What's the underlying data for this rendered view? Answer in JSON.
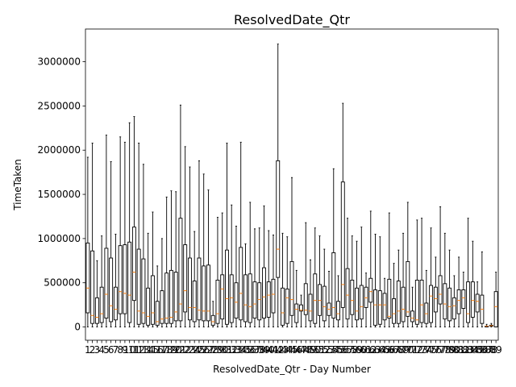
{
  "chart_data": {
    "type": "box",
    "title": "ResolvedDate_Qtr",
    "xlabel": "ResolvedDate_Qtr - Day Number",
    "ylabel": "TimeTaken",
    "ylim": [
      -150000,
      3370000
    ],
    "xlim": [
      0.5,
      89.5
    ],
    "yticks": [
      0,
      500000,
      1000000,
      1500000,
      2000000,
      2500000,
      3000000
    ],
    "ytick_labels": [
      "0",
      "500000",
      "1000000",
      "1500000",
      "2000000",
      "2500000",
      "3000000"
    ],
    "grid": false,
    "legend": "none",
    "colors": {
      "box": "#000000",
      "median": "#ff7f0e"
    },
    "categories": [
      "1",
      "2",
      "3",
      "4",
      "5",
      "6",
      "7",
      "8",
      "9",
      "10",
      "11",
      "12",
      "13",
      "14",
      "15",
      "16",
      "17",
      "18",
      "19",
      "20",
      "21",
      "22",
      "23",
      "24",
      "25",
      "26",
      "27",
      "28",
      "29",
      "30",
      "31",
      "32",
      "33",
      "34",
      "35",
      "36",
      "37",
      "38",
      "39",
      "40",
      "41",
      "42",
      "43",
      "44",
      "45",
      "46",
      "47",
      "48",
      "49",
      "50",
      "51",
      "52",
      "53",
      "54",
      "55",
      "56",
      "57",
      "58",
      "59",
      "60",
      "61",
      "62",
      "63",
      "64",
      "65",
      "66",
      "67",
      "68",
      "69",
      "70",
      "71",
      "72",
      "73",
      "74",
      "75",
      "76",
      "77",
      "78",
      "79",
      "80",
      "81",
      "82",
      "83",
      "84",
      "85",
      "86",
      "87",
      "88",
      "89"
    ],
    "boxes": [
      {
        "whislo": 0,
        "q1": 160000,
        "med": 440000,
        "q3": 950000,
        "whishi": 1920000
      },
      {
        "whislo": 0,
        "q1": 40000,
        "med": 130000,
        "q3": 860000,
        "whishi": 2080000
      },
      {
        "whislo": 0,
        "q1": 40000,
        "med": 110000,
        "q3": 330000,
        "whishi": 750000
      },
      {
        "whislo": 0,
        "q1": 50000,
        "med": 150000,
        "q3": 450000,
        "whishi": 1030000
      },
      {
        "whislo": 0,
        "q1": 100000,
        "med": 370000,
        "q3": 890000,
        "whishi": 2170000
      },
      {
        "whislo": 0,
        "q1": 60000,
        "med": 240000,
        "q3": 780000,
        "whishi": 1870000
      },
      {
        "whislo": 0,
        "q1": 80000,
        "med": 200000,
        "q3": 450000,
        "whishi": 1050000
      },
      {
        "whislo": 0,
        "q1": 150000,
        "med": 400000,
        "q3": 920000,
        "whishi": 2150000
      },
      {
        "whislo": 0,
        "q1": 150000,
        "med": 380000,
        "q3": 930000,
        "whishi": 2090000
      },
      {
        "whislo": 0,
        "q1": 50000,
        "med": 360000,
        "q3": 960000,
        "whishi": 2310000
      },
      {
        "whislo": 0,
        "q1": 300000,
        "med": 620000,
        "q3": 1130000,
        "whishi": 2380000
      },
      {
        "whislo": 0,
        "q1": 30000,
        "med": 180000,
        "q3": 880000,
        "whishi": 2080000
      },
      {
        "whislo": 0,
        "q1": 40000,
        "med": 160000,
        "q3": 770000,
        "whishi": 1840000
      },
      {
        "whislo": 0,
        "q1": 20000,
        "med": 120000,
        "q3": 440000,
        "whishi": 1060000
      },
      {
        "whislo": 0,
        "q1": 30000,
        "med": 160000,
        "q3": 580000,
        "whishi": 1300000
      },
      {
        "whislo": 0,
        "q1": 20000,
        "med": 60000,
        "q3": 290000,
        "whishi": 690000
      },
      {
        "whislo": 0,
        "q1": 40000,
        "med": 90000,
        "q3": 410000,
        "whishi": 1000000
      },
      {
        "whislo": 0,
        "q1": 40000,
        "med": 100000,
        "q3": 610000,
        "whishi": 1470000
      },
      {
        "whislo": 0,
        "q1": 40000,
        "med": 110000,
        "q3": 640000,
        "whishi": 1540000
      },
      {
        "whislo": 0,
        "q1": 70000,
        "med": 170000,
        "q3": 620000,
        "whishi": 1530000
      },
      {
        "whislo": 0,
        "q1": 70000,
        "med": 260000,
        "q3": 1230000,
        "whishi": 2510000
      },
      {
        "whislo": 0,
        "q1": 170000,
        "med": 410000,
        "q3": 930000,
        "whishi": 2040000
      },
      {
        "whislo": 0,
        "q1": 80000,
        "med": 220000,
        "q3": 780000,
        "whishi": 1810000
      },
      {
        "whislo": 0,
        "q1": 60000,
        "med": 220000,
        "q3": 520000,
        "whishi": 1080000
      },
      {
        "whislo": 0,
        "q1": 80000,
        "med": 190000,
        "q3": 780000,
        "whishi": 1880000
      },
      {
        "whislo": 0,
        "q1": 70000,
        "med": 180000,
        "q3": 690000,
        "whishi": 1730000
      },
      {
        "whislo": 0,
        "q1": 70000,
        "med": 180000,
        "q3": 700000,
        "whishi": 1550000
      },
      {
        "whislo": 0,
        "q1": 20000,
        "med": 60000,
        "q3": 130000,
        "whishi": 290000
      },
      {
        "whislo": 0,
        "q1": 40000,
        "med": 150000,
        "q3": 530000,
        "whishi": 1240000
      },
      {
        "whislo": 0,
        "q1": 90000,
        "med": 430000,
        "q3": 590000,
        "whishi": 1290000
      },
      {
        "whislo": 0,
        "q1": 30000,
        "med": 320000,
        "q3": 870000,
        "whishi": 2080000
      },
      {
        "whislo": 0,
        "q1": 50000,
        "med": 330000,
        "q3": 590000,
        "whishi": 1380000
      },
      {
        "whislo": 0,
        "q1": 100000,
        "med": 280000,
        "q3": 500000,
        "whishi": 1140000
      },
      {
        "whislo": 0,
        "q1": 80000,
        "med": 380000,
        "q3": 900000,
        "whishi": 2090000
      },
      {
        "whislo": 0,
        "q1": 60000,
        "med": 250000,
        "q3": 590000,
        "whishi": 940000
      },
      {
        "whislo": 0,
        "q1": 50000,
        "med": 230000,
        "q3": 600000,
        "whishi": 1410000
      },
      {
        "whislo": 0,
        "q1": 100000,
        "med": 260000,
        "q3": 510000,
        "whishi": 1110000
      },
      {
        "whislo": 0,
        "q1": 80000,
        "med": 310000,
        "q3": 500000,
        "whishi": 1120000
      },
      {
        "whislo": 0,
        "q1": 100000,
        "med": 340000,
        "q3": 670000,
        "whishi": 1370000
      },
      {
        "whislo": 0,
        "q1": 110000,
        "med": 360000,
        "q3": 510000,
        "whishi": 1090000
      },
      {
        "whislo": 0,
        "q1": 160000,
        "med": 370000,
        "q3": 540000,
        "whishi": 1040000
      },
      {
        "whislo": 0,
        "q1": 560000,
        "med": 880000,
        "q3": 1880000,
        "whishi": 3200000
      },
      {
        "whislo": 0,
        "q1": 20000,
        "med": 160000,
        "q3": 440000,
        "whishi": 1060000
      },
      {
        "whislo": 0,
        "q1": 40000,
        "med": 330000,
        "q3": 430000,
        "whishi": 1020000
      },
      {
        "whislo": 0,
        "q1": 130000,
        "med": 310000,
        "q3": 740000,
        "whishi": 1690000
      },
      {
        "whislo": 0,
        "q1": 50000,
        "med": 200000,
        "q3": 260000,
        "whishi": 640000
      },
      {
        "whislo": 0,
        "q1": 180000,
        "med": 190000,
        "q3": 250000,
        "whishi": 360000
      },
      {
        "whislo": 0,
        "q1": 140000,
        "med": 190000,
        "q3": 490000,
        "whishi": 1180000
      },
      {
        "whislo": 0,
        "q1": 70000,
        "med": 180000,
        "q3": 370000,
        "whishi": 760000
      },
      {
        "whislo": 0,
        "q1": 40000,
        "med": 300000,
        "q3": 600000,
        "whishi": 1120000
      },
      {
        "whislo": 0,
        "q1": 130000,
        "med": 300000,
        "q3": 480000,
        "whishi": 1030000
      },
      {
        "whislo": 0,
        "q1": 70000,
        "med": 230000,
        "q3": 460000,
        "whishi": 880000
      },
      {
        "whislo": 0,
        "q1": 130000,
        "med": 200000,
        "q3": 270000,
        "whishi": 630000
      },
      {
        "whislo": 0,
        "q1": 100000,
        "med": 220000,
        "q3": 840000,
        "whishi": 1790000
      },
      {
        "whislo": 0,
        "q1": 80000,
        "med": 150000,
        "q3": 290000,
        "whishi": 580000
      },
      {
        "whislo": 0,
        "q1": 220000,
        "med": 480000,
        "q3": 1640000,
        "whishi": 2530000
      },
      {
        "whislo": 0,
        "q1": 90000,
        "med": 360000,
        "q3": 660000,
        "whishi": 1230000
      },
      {
        "whislo": 0,
        "q1": 140000,
        "med": 300000,
        "q3": 530000,
        "whishi": 1030000
      },
      {
        "whislo": 0,
        "q1": 80000,
        "med": 180000,
        "q3": 440000,
        "whishi": 970000
      },
      {
        "whislo": 0,
        "q1": 90000,
        "med": 230000,
        "q3": 470000,
        "whishi": 1130000
      },
      {
        "whislo": 0,
        "q1": 220000,
        "med": 330000,
        "q3": 450000,
        "whishi": 610000
      },
      {
        "whislo": 0,
        "q1": 280000,
        "med": 400000,
        "q3": 550000,
        "whishi": 1310000
      },
      {
        "whislo": 0,
        "q1": 20000,
        "med": 250000,
        "q3": 420000,
        "whishi": 1050000
      },
      {
        "whislo": 0,
        "q1": 30000,
        "med": 250000,
        "q3": 410000,
        "whishi": 1020000
      },
      {
        "whislo": 0,
        "q1": 80000,
        "med": 250000,
        "q3": 380000,
        "whishi": 550000
      },
      {
        "whislo": 0,
        "q1": 100000,
        "med": 120000,
        "q3": 540000,
        "whishi": 1290000
      },
      {
        "whislo": 0,
        "q1": 40000,
        "med": 150000,
        "q3": 320000,
        "whishi": 720000
      },
      {
        "whislo": 0,
        "q1": 40000,
        "med": 180000,
        "q3": 520000,
        "whishi": 870000
      },
      {
        "whislo": 0,
        "q1": 60000,
        "med": 200000,
        "q3": 450000,
        "whishi": 1060000
      },
      {
        "whislo": 0,
        "q1": 120000,
        "med": 170000,
        "q3": 740000,
        "whishi": 1410000
      },
      {
        "whislo": 0,
        "q1": 60000,
        "med": 100000,
        "q3": 180000,
        "whishi": 450000
      },
      {
        "whislo": 0,
        "q1": 30000,
        "med": 80000,
        "q3": 530000,
        "whishi": 1210000
      },
      {
        "whislo": 0,
        "q1": 50000,
        "med": 250000,
        "q3": 530000,
        "whishi": 1230000
      },
      {
        "whislo": 0,
        "q1": 40000,
        "med": 150000,
        "q3": 270000,
        "whishi": 640000
      },
      {
        "whislo": 0,
        "q1": 50000,
        "med": 350000,
        "q3": 470000,
        "whishi": 1120000
      },
      {
        "whislo": 0,
        "q1": 170000,
        "med": 320000,
        "q3": 450000,
        "whishi": 790000
      },
      {
        "whislo": 0,
        "q1": 260000,
        "med": 370000,
        "q3": 580000,
        "whishi": 1360000
      },
      {
        "whislo": 0,
        "q1": 90000,
        "med": 260000,
        "q3": 490000,
        "whishi": 1060000
      },
      {
        "whislo": 0,
        "q1": 70000,
        "med": 230000,
        "q3": 440000,
        "whishi": 870000
      },
      {
        "whislo": 0,
        "q1": 90000,
        "med": 240000,
        "q3": 330000,
        "whishi": 580000
      },
      {
        "whislo": 0,
        "q1": 150000,
        "med": 300000,
        "q3": 420000,
        "whishi": 790000
      },
      {
        "whislo": 0,
        "q1": 210000,
        "med": 330000,
        "q3": 420000,
        "whishi": 620000
      },
      {
        "whislo": 0,
        "q1": 50000,
        "med": 150000,
        "q3": 510000,
        "whishi": 1230000
      },
      {
        "whislo": 0,
        "q1": 110000,
        "med": 300000,
        "q3": 510000,
        "whishi": 970000
      },
      {
        "whislo": 0,
        "q1": 170000,
        "med": 290000,
        "q3": 370000,
        "whishi": 510000
      },
      {
        "whislo": 0,
        "q1": 40000,
        "med": 200000,
        "q3": 360000,
        "whishi": 850000
      },
      {
        "whislo": 0,
        "q1": 0,
        "med": 10000,
        "q3": 10000,
        "whishi": 30000
      },
      {
        "whislo": 0,
        "q1": 10000,
        "med": 15000,
        "q3": 20000,
        "whishi": 40000
      },
      {
        "whislo": 0,
        "q1": 0,
        "med": 230000,
        "q3": 400000,
        "whishi": 620000
      }
    ]
  }
}
